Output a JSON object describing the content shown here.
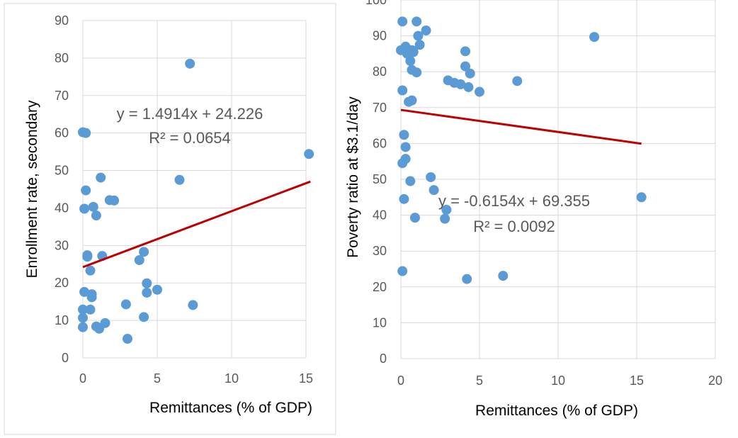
{
  "chart_data": [
    {
      "type": "scatter",
      "xlabel": "Remittances (% of GDP)",
      "ylabel": "Enrollment rate, secondary",
      "xlim": [
        0,
        15
      ],
      "ylim": [
        0,
        90
      ],
      "xticks": [
        0,
        5,
        10,
        15
      ],
      "yticks": [
        0,
        10,
        20,
        30,
        40,
        50,
        60,
        70,
        80,
        90
      ],
      "grid": true,
      "point_color": "#5B9BD5",
      "trend_color": "#C00000",
      "equation": "y = 1.4914x + 24.226",
      "r_squared": "R² = 0.0654",
      "trend": {
        "slope": 1.4914,
        "intercept": 24.226,
        "x_range": [
          0,
          15.3
        ]
      },
      "points": [
        {
          "x": 0.0,
          "y": 60.2
        },
        {
          "x": 0.2,
          "y": 60.0
        },
        {
          "x": 0.2,
          "y": 44.7
        },
        {
          "x": 0.1,
          "y": 39.8
        },
        {
          "x": 0.7,
          "y": 40.3
        },
        {
          "x": 0.9,
          "y": 38.0
        },
        {
          "x": 1.2,
          "y": 48.1
        },
        {
          "x": 1.8,
          "y": 42.1
        },
        {
          "x": 2.1,
          "y": 42.0
        },
        {
          "x": 0.3,
          "y": 27.4
        },
        {
          "x": 0.3,
          "y": 27.0
        },
        {
          "x": 1.3,
          "y": 27.2
        },
        {
          "x": 0.5,
          "y": 23.3
        },
        {
          "x": 0.1,
          "y": 17.6
        },
        {
          "x": 0.6,
          "y": 17.0
        },
        {
          "x": 0.6,
          "y": 16.2
        },
        {
          "x": 0.0,
          "y": 12.9
        },
        {
          "x": 0.5,
          "y": 12.9
        },
        {
          "x": 0.0,
          "y": 10.7
        },
        {
          "x": 0.0,
          "y": 8.2
        },
        {
          "x": 0.9,
          "y": 8.4
        },
        {
          "x": 1.1,
          "y": 7.8
        },
        {
          "x": 1.5,
          "y": 9.3
        },
        {
          "x": 2.9,
          "y": 14.3
        },
        {
          "x": 3.0,
          "y": 5.1
        },
        {
          "x": 3.8,
          "y": 26.1
        },
        {
          "x": 4.1,
          "y": 28.3
        },
        {
          "x": 4.3,
          "y": 19.9
        },
        {
          "x": 4.3,
          "y": 17.4
        },
        {
          "x": 5.0,
          "y": 18.2
        },
        {
          "x": 4.1,
          "y": 10.9
        },
        {
          "x": 6.5,
          "y": 47.5
        },
        {
          "x": 7.2,
          "y": 78.5
        },
        {
          "x": 7.4,
          "y": 14.1
        },
        {
          "x": 15.2,
          "y": 54.4
        }
      ]
    },
    {
      "type": "scatter",
      "xlabel": "Remittances (% of GDP)",
      "ylabel": "Poverty ratio at $3.1/day",
      "xlim": [
        0,
        20
      ],
      "ylim": [
        0,
        100
      ],
      "xticks": [
        0,
        5,
        10,
        15,
        20
      ],
      "yticks": [
        0,
        10,
        20,
        30,
        40,
        50,
        60,
        70,
        80,
        90,
        100
      ],
      "grid": true,
      "point_color": "#5B9BD5",
      "trend_color": "#C00000",
      "equation": "y = -0.6154x + 69.355",
      "r_squared": "R² = 0.0092",
      "trend": {
        "slope": -0.6154,
        "intercept": 69.355,
        "x_range": [
          0,
          15.3
        ]
      },
      "points": [
        {
          "x": 0.1,
          "y": 94.0
        },
        {
          "x": 1.0,
          "y": 94.0
        },
        {
          "x": 1.1,
          "y": 90.0
        },
        {
          "x": 1.6,
          "y": 91.5
        },
        {
          "x": 0.0,
          "y": 86.0
        },
        {
          "x": 0.3,
          "y": 87.0
        },
        {
          "x": 0.4,
          "y": 85.0
        },
        {
          "x": 0.7,
          "y": 86.0
        },
        {
          "x": 1.2,
          "y": 87.5
        },
        {
          "x": 0.8,
          "y": 85.5
        },
        {
          "x": 0.6,
          "y": 83.0
        },
        {
          "x": 0.7,
          "y": 80.5
        },
        {
          "x": 1.0,
          "y": 79.8
        },
        {
          "x": 0.1,
          "y": 74.8
        },
        {
          "x": 0.5,
          "y": 71.6
        },
        {
          "x": 0.7,
          "y": 72.0
        },
        {
          "x": 3.0,
          "y": 77.6
        },
        {
          "x": 3.4,
          "y": 76.9
        },
        {
          "x": 3.8,
          "y": 76.5
        },
        {
          "x": 4.1,
          "y": 85.7
        },
        {
          "x": 4.1,
          "y": 81.5
        },
        {
          "x": 4.4,
          "y": 79.5
        },
        {
          "x": 4.3,
          "y": 75.7
        },
        {
          "x": 5.0,
          "y": 74.4
        },
        {
          "x": 7.4,
          "y": 77.4
        },
        {
          "x": 12.3,
          "y": 89.7
        },
        {
          "x": 0.2,
          "y": 62.4
        },
        {
          "x": 0.3,
          "y": 55.7
        },
        {
          "x": 0.3,
          "y": 59.0
        },
        {
          "x": 0.1,
          "y": 54.5
        },
        {
          "x": 0.6,
          "y": 49.5
        },
        {
          "x": 0.2,
          "y": 44.5
        },
        {
          "x": 1.9,
          "y": 50.6
        },
        {
          "x": 2.1,
          "y": 47.0
        },
        {
          "x": 0.9,
          "y": 39.3
        },
        {
          "x": 2.8,
          "y": 39.0
        },
        {
          "x": 2.9,
          "y": 41.5
        },
        {
          "x": 0.1,
          "y": 24.4
        },
        {
          "x": 4.2,
          "y": 22.2
        },
        {
          "x": 6.5,
          "y": 23.1
        },
        {
          "x": 15.3,
          "y": 45.0
        }
      ]
    }
  ]
}
